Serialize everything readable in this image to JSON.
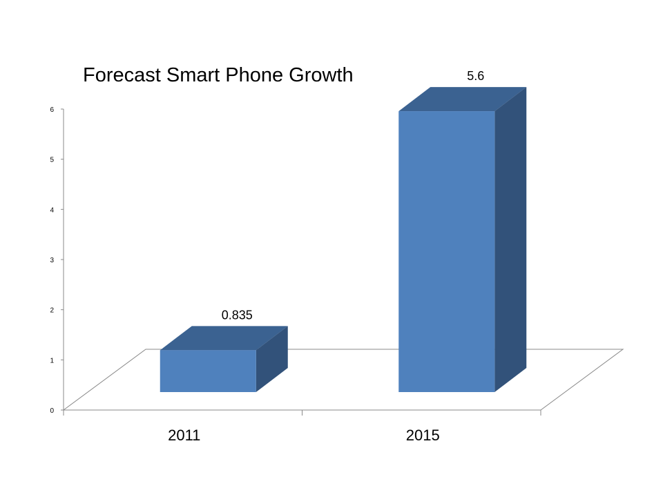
{
  "chart_data": {
    "type": "bar",
    "style": "3d-column",
    "title": "Forecast Smart Phone Growth",
    "categories": [
      "2011",
      "2015"
    ],
    "values": [
      0.835,
      5.6
    ],
    "data_labels": [
      "0.835",
      "5.6"
    ],
    "xlabel": "",
    "ylabel": "",
    "ylim": [
      0,
      6
    ],
    "yticks": [
      "0",
      "1",
      "2",
      "3",
      "4",
      "5",
      "6"
    ],
    "grid": false,
    "legend": "none",
    "colors": {
      "front": "#4F81BD",
      "top": "#3B6291",
      "side": "#32527A",
      "axis": "#888888"
    }
  }
}
